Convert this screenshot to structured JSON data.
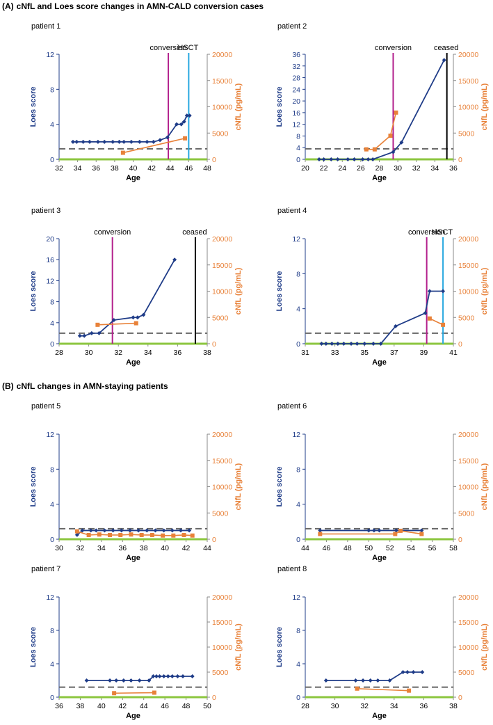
{
  "sections": {
    "A": {
      "tag": "(A)",
      "title": "cNfL and Loes score changes in AMN-CALD conversion cases"
    },
    "B": {
      "tag": "(B)",
      "title": "cNfL changes in AMN-staying patients"
    }
  },
  "colors": {
    "loes": "#1f3c88",
    "cnfl": "#e8823a",
    "conversion": "#b3208c",
    "hsct": "#29a8e0",
    "ceased": "#000000",
    "baseline": "#8cc63f",
    "threshold": "#666666"
  },
  "chart_data": [
    {
      "type": "line",
      "title": "patient 1",
      "xlabel": "Age",
      "ylabel_left": "Loes score",
      "ylabel_right": "cNfL (pg/mL)",
      "xlim": [
        32,
        48
      ],
      "xticks": [
        "32",
        "34",
        "36",
        "38",
        "40",
        "42",
        "44",
        "46",
        "48"
      ],
      "ylim_left": [
        0,
        12
      ],
      "yticks_left": [
        "0",
        "4",
        "8",
        "12"
      ],
      "ylim_right": [
        0,
        20000
      ],
      "yticks_right": [
        "0",
        "5000",
        "10000",
        "15000",
        "20000"
      ],
      "threshold_loes": 1.2,
      "series": [
        {
          "name": "Loes score",
          "axis": "left",
          "marker": "diamond",
          "x": [
            33.5,
            33.9,
            34.6,
            35.3,
            36.2,
            36.9,
            37.8,
            38.5,
            39.0,
            39.8,
            40.7,
            41.5,
            42.2,
            42.9,
            43.7,
            44.7,
            45.2,
            45.5,
            45.8,
            46.1
          ],
          "y": [
            2,
            2,
            2,
            2,
            2,
            2,
            2,
            2,
            2,
            2,
            2,
            2,
            2,
            2.2,
            2.5,
            4,
            4,
            4.3,
            5,
            5
          ]
        },
        {
          "name": "cNfL",
          "axis": "right",
          "marker": "square",
          "x": [
            38.9,
            45.6
          ],
          "y": [
            1250,
            4000
          ]
        }
      ],
      "events": [
        {
          "label": "conversion",
          "x": 43.8,
          "kind": "conversion"
        },
        {
          "label": "HSCT",
          "x": 46.0,
          "kind": "hsct"
        }
      ]
    },
    {
      "type": "line",
      "title": "patient 2",
      "xlabel": "Age",
      "ylabel_left": "Loes score",
      "ylabel_right": "cNfL (pg/mL)",
      "xlim": [
        20,
        36
      ],
      "xticks": [
        "20",
        "22",
        "24",
        "26",
        "28",
        "30",
        "32",
        "34",
        "36"
      ],
      "ylim_left": [
        0,
        36
      ],
      "yticks_left": [
        "0",
        "4",
        "8",
        "12",
        "16",
        "20",
        "24",
        "28",
        "32",
        "36"
      ],
      "ylim_right": [
        0,
        20000
      ],
      "yticks_right": [
        "0",
        "5000",
        "10000",
        "15000",
        "20000"
      ],
      "threshold_loes": 3.6,
      "series": [
        {
          "name": "Loes score",
          "axis": "left",
          "marker": "diamond",
          "x": [
            21.5,
            22.0,
            22.8,
            23.5,
            24.6,
            25.3,
            26.2,
            26.8,
            27.3,
            29.5,
            30.4,
            35.0
          ],
          "y": [
            0,
            0,
            0,
            0,
            0,
            0,
            0,
            0,
            0,
            2.5,
            5.8,
            34
          ]
        },
        {
          "name": "cNfL",
          "axis": "right",
          "marker": "square",
          "x": [
            26.6,
            27.5,
            29.2,
            29.8
          ],
          "y": [
            1900,
            1900,
            4500,
            8900
          ]
        }
      ],
      "events": [
        {
          "label": "conversion",
          "x": 29.5,
          "kind": "conversion"
        },
        {
          "label": "ceased",
          "x": 35.3,
          "kind": "ceased"
        }
      ]
    },
    {
      "type": "line",
      "title": "patient 3",
      "xlabel": "Age",
      "ylabel_left": "Loes score",
      "ylabel_right": "cNfL (pg/mL)",
      "xlim": [
        28,
        38
      ],
      "xticks": [
        "28",
        "30",
        "32",
        "34",
        "36",
        "38"
      ],
      "ylim_left": [
        0,
        20
      ],
      "yticks_left": [
        "0",
        "4",
        "8",
        "12",
        "16",
        "20"
      ],
      "ylim_right": [
        0,
        20000
      ],
      "yticks_right": [
        "0",
        "5000",
        "10000",
        "15000",
        "20000"
      ],
      "threshold_loes": 2,
      "series": [
        {
          "name": "Loes score",
          "axis": "left",
          "marker": "diamond",
          "x": [
            29.4,
            29.7,
            30.2,
            30.7,
            31.7,
            33.0,
            33.3,
            33.7,
            35.8
          ],
          "y": [
            1.5,
            1.5,
            2,
            2,
            4.5,
            5,
            5,
            5.5,
            16
          ]
        },
        {
          "name": "cNfL",
          "axis": "right",
          "marker": "square",
          "x": [
            30.6,
            33.2
          ],
          "y": [
            3600,
            3900
          ]
        }
      ],
      "events": [
        {
          "label": "conversion",
          "x": 31.6,
          "kind": "conversion"
        },
        {
          "label": "ceased",
          "x": 37.2,
          "kind": "ceased"
        }
      ]
    },
    {
      "type": "line",
      "title": "patient 4",
      "xlabel": "Age",
      "ylabel_left": "Loes score",
      "ylabel_right": "cNfL (pg/mL)",
      "xlim": [
        31,
        41
      ],
      "xticks": [
        "31",
        "33",
        "35",
        "37",
        "39",
        "41"
      ],
      "ylim_left": [
        0,
        12
      ],
      "yticks_left": [
        "0",
        "4",
        "8",
        "12"
      ],
      "ylim_right": [
        0,
        20000
      ],
      "yticks_right": [
        "0",
        "5000",
        "10000",
        "15000",
        "20000"
      ],
      "threshold_loes": 1.2,
      "series": [
        {
          "name": "Loes score",
          "axis": "left",
          "marker": "diamond",
          "x": [
            32.1,
            32.4,
            32.8,
            33.2,
            33.6,
            34.1,
            34.5,
            35.0,
            35.6,
            36.1,
            37.1,
            39.1,
            39.4,
            40.3
          ],
          "y": [
            0,
            0,
            0,
            0,
            0,
            0,
            0,
            0,
            0,
            0,
            2,
            3.5,
            6,
            6
          ]
        },
        {
          "name": "cNfL",
          "axis": "right",
          "marker": "square",
          "x": [
            39.4,
            40.3
          ],
          "y": [
            4800,
            3600
          ]
        }
      ],
      "events": [
        {
          "label": "conversion",
          "x": 39.2,
          "kind": "conversion"
        },
        {
          "label": "HSCT",
          "x": 40.3,
          "kind": "hsct"
        }
      ]
    },
    {
      "type": "line",
      "title": "patient 5",
      "xlabel": "Age",
      "ylabel_left": "Loes score",
      "ylabel_right": "cNfL (pg/mL)",
      "xlim": [
        30,
        44
      ],
      "xticks": [
        "30",
        "32",
        "34",
        "36",
        "38",
        "40",
        "42",
        "44"
      ],
      "ylim_left": [
        0,
        12
      ],
      "yticks_left": [
        "0",
        "4",
        "8",
        "12"
      ],
      "ylim_right": [
        0,
        20000
      ],
      "yticks_right": [
        "0",
        "5000",
        "10000",
        "15000",
        "20000"
      ],
      "threshold_loes": 1.2,
      "series": [
        {
          "name": "Loes score",
          "axis": "left",
          "marker": "diamond",
          "x": [
            31.7,
            32.2,
            33.0,
            33.5,
            34.3,
            35.1,
            35.9,
            36.7,
            37.5,
            38.3,
            39.1,
            39.9,
            40.7,
            41.5,
            42.3
          ],
          "y": [
            0.5,
            1,
            1,
            1,
            1,
            1,
            1,
            1,
            1,
            1,
            1,
            1,
            1,
            1,
            1
          ]
        },
        {
          "name": "cNfL",
          "axis": "right",
          "marker": "square",
          "x": [
            31.7,
            32.8,
            33.8,
            34.8,
            35.8,
            36.8,
            37.8,
            38.8,
            39.8,
            40.8,
            41.8,
            42.6
          ],
          "y": [
            1500,
            800,
            900,
            800,
            800,
            900,
            800,
            800,
            700,
            700,
            800,
            700
          ]
        }
      ],
      "events": []
    },
    {
      "type": "line",
      "title": "patient 6",
      "xlabel": "Age",
      "ylabel_left": "Loes score",
      "ylabel_right": "cNfL (pg/mL)",
      "xlim": [
        44,
        58
      ],
      "xticks": [
        "44",
        "46",
        "48",
        "50",
        "52",
        "54",
        "56",
        "58"
      ],
      "ylim_left": [
        0,
        12
      ],
      "yticks_left": [
        "0",
        "4",
        "8",
        "12"
      ],
      "ylim_right": [
        0,
        20000
      ],
      "yticks_right": [
        "0",
        "5000",
        "10000",
        "15000",
        "20000"
      ],
      "threshold_loes": 1.2,
      "series": [
        {
          "name": "Loes score",
          "axis": "left",
          "marker": "diamond",
          "x": [
            45.4,
            50.0,
            50.5,
            51.0,
            52.6,
            55.0
          ],
          "y": [
            1,
            1,
            1,
            1,
            1,
            1
          ]
        },
        {
          "name": "cNfL",
          "axis": "right",
          "marker": "square",
          "x": [
            45.4,
            52.5,
            53.0,
            55.0
          ],
          "y": [
            1000,
            1000,
            1600,
            1000
          ]
        }
      ],
      "events": []
    },
    {
      "type": "line",
      "title": "patient 7",
      "xlabel": "Age",
      "ylabel_left": "Loes score",
      "ylabel_right": "cNfL (pg/mL)",
      "xlim": [
        36,
        50
      ],
      "xticks": [
        "36",
        "38",
        "40",
        "42",
        "44",
        "46",
        "48",
        "50"
      ],
      "ylim_left": [
        0,
        12
      ],
      "yticks_left": [
        "0",
        "4",
        "8",
        "12"
      ],
      "ylim_right": [
        0,
        20000
      ],
      "yticks_right": [
        "0",
        "5000",
        "10000",
        "15000",
        "20000"
      ],
      "threshold_loes": 1.2,
      "series": [
        {
          "name": "Loes score",
          "axis": "left",
          "marker": "diamond",
          "x": [
            38.6,
            40.8,
            41.4,
            42.1,
            42.8,
            43.6,
            44.5,
            44.9,
            45.2,
            45.5,
            45.9,
            46.3,
            46.7,
            47.2,
            47.7,
            48.6
          ],
          "y": [
            2,
            2,
            2,
            2,
            2,
            2,
            2,
            2.5,
            2.5,
            2.5,
            2.5,
            2.5,
            2.5,
            2.5,
            2.5,
            2.5
          ]
        },
        {
          "name": "cNfL",
          "axis": "right",
          "marker": "square",
          "x": [
            41.2,
            45.0
          ],
          "y": [
            800,
            900
          ]
        }
      ],
      "events": []
    },
    {
      "type": "line",
      "title": "patient 8",
      "xlabel": "Age",
      "ylabel_left": "Loes score",
      "ylabel_right": "cNfL (pg/mL)",
      "xlim": [
        28,
        38
      ],
      "xticks": [
        "28",
        "30",
        "32",
        "34",
        "36",
        "38"
      ],
      "ylim_left": [
        0,
        12
      ],
      "yticks_left": [
        "0",
        "4",
        "8",
        "12"
      ],
      "ylim_right": [
        0,
        20000
      ],
      "yticks_right": [
        "0",
        "5000",
        "10000",
        "15000",
        "20000"
      ],
      "threshold_loes": 1.2,
      "series": [
        {
          "name": "Loes score",
          "axis": "left",
          "marker": "diamond",
          "x": [
            29.4,
            31.4,
            31.9,
            32.4,
            32.9,
            33.7,
            34.6,
            34.9,
            35.3,
            35.9
          ],
          "y": [
            2,
            2,
            2,
            2,
            2,
            2,
            3,
            3,
            3,
            3
          ]
        },
        {
          "name": "cNfL",
          "axis": "right",
          "marker": "square",
          "x": [
            31.5,
            35.0
          ],
          "y": [
            1700,
            1300
          ]
        }
      ],
      "events": []
    }
  ]
}
